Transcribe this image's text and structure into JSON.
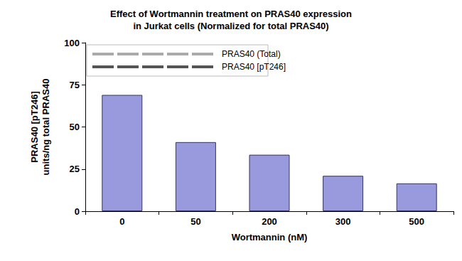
{
  "chart_data": {
    "type": "bar",
    "title": "Effect of Wortmannin treatment on PRAS40 expression\nin Jurkat cells (Normalized for total PRAS40)",
    "x_label": "Wortmannin (nM)",
    "y_label": "PRAS40 [pT246]\nunits/ng total PRAS40",
    "categories": [
      "0",
      "50",
      "200",
      "300",
      "500"
    ],
    "values": [
      69,
      41,
      33.5,
      21,
      16.5
    ],
    "color": "#9999dd",
    "ylim": [
      0,
      100
    ],
    "yticks": [
      0,
      25,
      50,
      75,
      100
    ],
    "grid": false,
    "annotations": [
      "PRAS40 (Total)",
      "PRAS40 [pT246]"
    ]
  }
}
